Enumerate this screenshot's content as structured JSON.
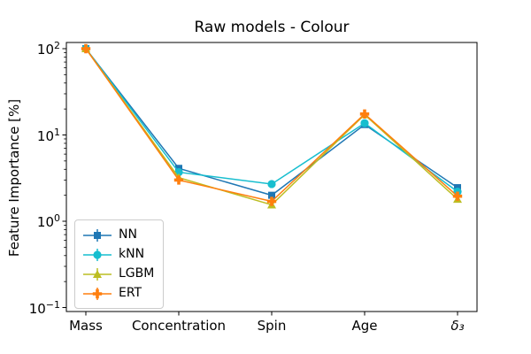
{
  "chart_data": {
    "type": "line",
    "title": "Raw models - Colour",
    "xlabel": "",
    "ylabel": "Feature Importance [%]",
    "y_scale": "log",
    "ylim": [
      0.09,
      118
    ],
    "grid": false,
    "categories": [
      "Mass",
      "Concentration",
      "Spin",
      "Age",
      "δ₃"
    ],
    "y_ticks": [
      {
        "base": "10",
        "exp": "2",
        "value": 100
      },
      {
        "base": "10",
        "exp": "1",
        "value": 10
      },
      {
        "base": "10",
        "exp": "0",
        "value": 1
      },
      {
        "base": "10",
        "exp": "−1",
        "value": 0.1
      }
    ],
    "series": [
      {
        "name": "NN",
        "color": "#1f77b4",
        "marker": "square",
        "values": [
          100,
          4.1,
          2.0,
          13.2,
          2.45
        ]
      },
      {
        "name": "kNN",
        "color": "#17becf",
        "marker": "circle",
        "values": [
          100,
          3.7,
          2.7,
          13.7,
          2.2
        ]
      },
      {
        "name": "LGBM",
        "color": "#bcbd22",
        "marker": "triangle-up",
        "values": [
          100,
          3.2,
          1.55,
          17.2,
          1.8
        ]
      },
      {
        "name": "ERT",
        "color": "#ff7f0e",
        "marker": "plus",
        "values": [
          100,
          3.0,
          1.7,
          17.5,
          1.95
        ]
      }
    ],
    "legend": {
      "position": "lower left",
      "labels": [
        "NN",
        "kNN",
        "LGBM",
        "ERT"
      ],
      "style": "errorbar"
    }
  }
}
